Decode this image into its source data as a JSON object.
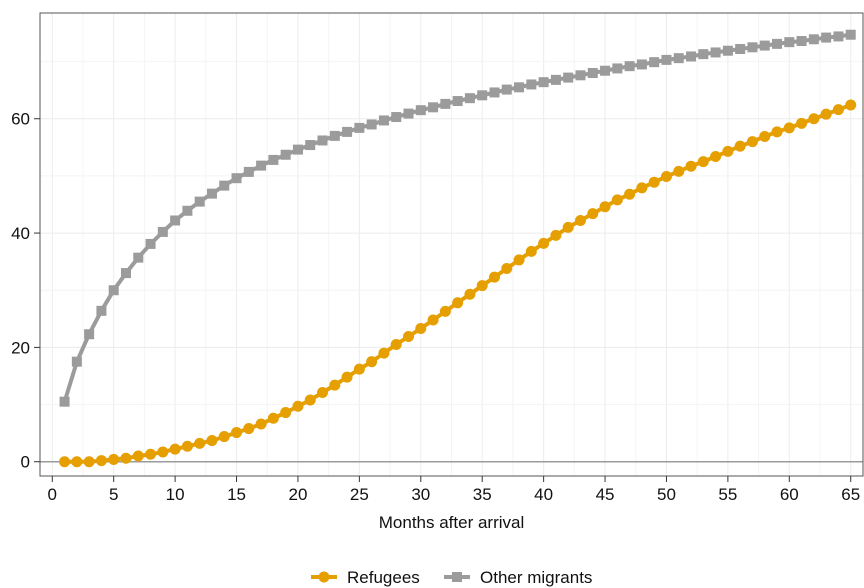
{
  "chart_data": {
    "type": "line",
    "title": "",
    "xlabel": "Months after arrival",
    "ylabel": "",
    "xlim": [
      -1,
      66
    ],
    "ylim": [
      -2.5,
      78.5
    ],
    "xticks": [
      0,
      5,
      10,
      15,
      20,
      25,
      30,
      35,
      40,
      45,
      50,
      55,
      60,
      65
    ],
    "yticks": [
      0,
      20,
      40,
      60
    ],
    "grid": true,
    "legend_position": "bottom",
    "x": [
      1,
      2,
      3,
      4,
      5,
      6,
      7,
      8,
      9,
      10,
      11,
      12,
      13,
      14,
      15,
      16,
      17,
      18,
      19,
      20,
      21,
      22,
      23,
      24,
      25,
      26,
      27,
      28,
      29,
      30,
      31,
      32,
      33,
      34,
      35,
      36,
      37,
      38,
      39,
      40,
      41,
      42,
      43,
      44,
      45,
      46,
      47,
      48,
      49,
      50,
      51,
      52,
      53,
      54,
      55,
      56,
      57,
      58,
      59,
      60,
      61,
      62,
      63,
      64,
      65
    ],
    "series": [
      {
        "name": "Refugees",
        "color": "#E69F00",
        "marker": "circle",
        "values": [
          0,
          0,
          0,
          0.2,
          0.4,
          0.6,
          1,
          1.3,
          1.7,
          2.2,
          2.7,
          3.2,
          3.7,
          4.4,
          5.1,
          5.8,
          6.6,
          7.6,
          8.6,
          9.7,
          10.8,
          12.1,
          13.4,
          14.8,
          16.2,
          17.5,
          19,
          20.5,
          21.9,
          23.3,
          24.8,
          26.3,
          27.8,
          29.3,
          30.8,
          32.3,
          33.8,
          35.3,
          36.8,
          38.2,
          39.6,
          41,
          42.2,
          43.4,
          44.6,
          45.8,
          46.8,
          47.9,
          48.9,
          49.9,
          50.8,
          51.7,
          52.5,
          53.4,
          54.3,
          55.2,
          56,
          56.9,
          57.7,
          58.4,
          59.2,
          60,
          60.8,
          61.6,
          62.4
        ]
      },
      {
        "name": "Other migrants",
        "color": "#9B9B9B",
        "marker": "square",
        "values": [
          10.5,
          17.5,
          22.3,
          26.4,
          30,
          33,
          35.7,
          38.1,
          40.2,
          42.2,
          43.9,
          45.5,
          46.9,
          48.3,
          49.6,
          50.7,
          51.8,
          52.8,
          53.7,
          54.6,
          55.4,
          56.2,
          57,
          57.7,
          58.4,
          59,
          59.7,
          60.3,
          60.9,
          61.5,
          62,
          62.6,
          63.1,
          63.6,
          64.1,
          64.6,
          65.1,
          65.5,
          66,
          66.4,
          66.8,
          67.2,
          67.6,
          68,
          68.4,
          68.8,
          69.2,
          69.5,
          69.9,
          70.3,
          70.6,
          70.9,
          71.3,
          71.6,
          71.9,
          72.2,
          72.5,
          72.8,
          73.1,
          73.4,
          73.6,
          73.9,
          74.2,
          74.4,
          74.7
        ]
      }
    ]
  }
}
